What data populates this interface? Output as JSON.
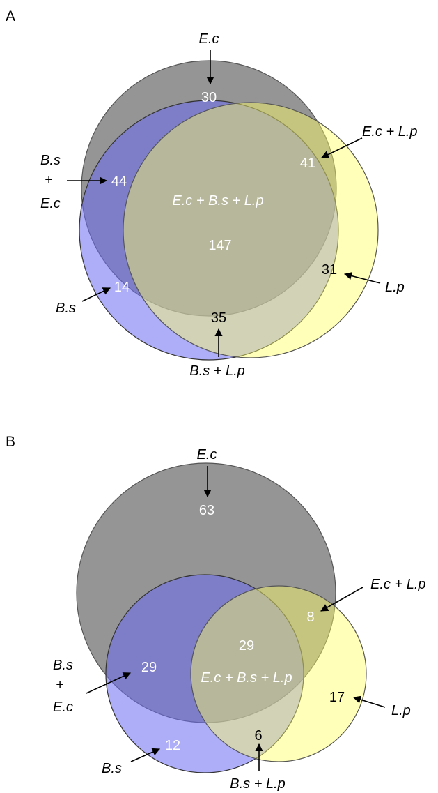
{
  "panels": {
    "a": {
      "letter": "A",
      "sets": {
        "ec": {
          "label": "E.c",
          "color": "#8c8c8c",
          "only": "30"
        },
        "bs": {
          "label": "B.s",
          "color": "#6a6af2",
          "only": "14"
        },
        "lp": {
          "label": "L.p",
          "color": "#ffff66",
          "only": "31"
        }
      },
      "intersections": {
        "bs_ec_label": [
          "B.s",
          "+",
          "E.c"
        ],
        "bs_ec": "44",
        "ec_lp_label": "E.c + L.p",
        "ec_lp": "41",
        "bs_lp_label": "B.s + L.p",
        "bs_lp": "35",
        "all_label": "E.c + B.s + L.p",
        "all": "147"
      }
    },
    "b": {
      "letter": "B",
      "sets": {
        "ec": {
          "label": "E.c",
          "color": "#8c8c8c",
          "only": "63"
        },
        "bs": {
          "label": "B.s",
          "color": "#6a6af2",
          "only": "12"
        },
        "lp": {
          "label": "L.p",
          "color": "#ffff66",
          "only": "17"
        }
      },
      "intersections": {
        "bs_ec_label": [
          "B.s",
          "+",
          "E.c"
        ],
        "bs_ec": "29",
        "ec_lp_label": "E.c + L.p",
        "ec_lp": "8",
        "bs_lp_label": "B.s + L.p",
        "bs_lp": "6",
        "all_label": "E.c + B.s + L.p",
        "all": "29"
      }
    }
  }
}
